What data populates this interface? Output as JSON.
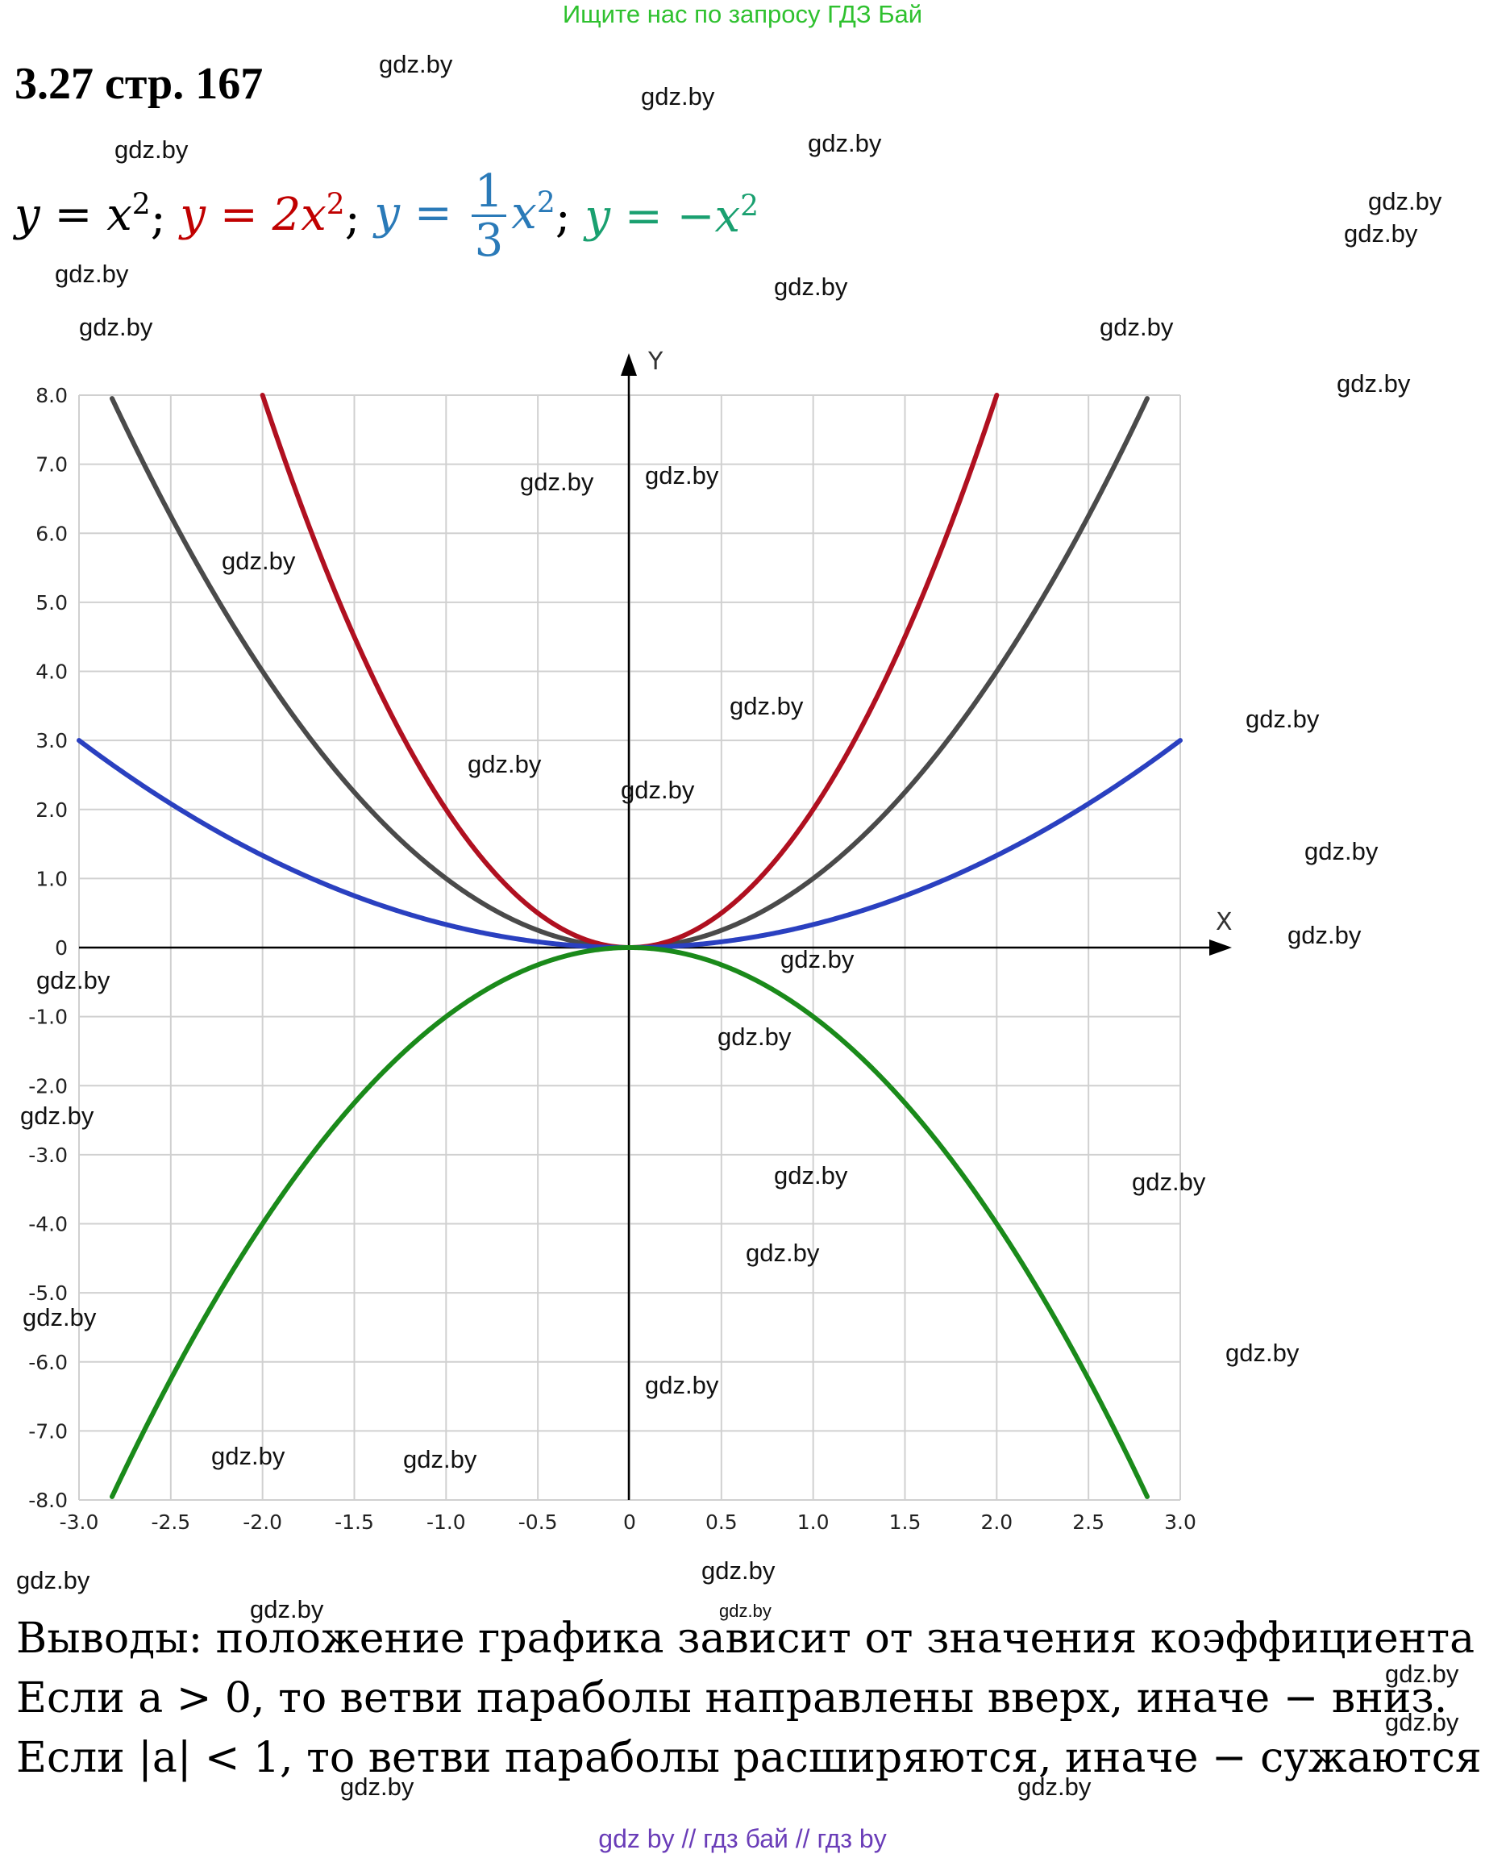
{
  "banner": "Ищите нас по запросу ГДЗ Бай",
  "title": "3.27 стр. 167",
  "formula": {
    "f1": {
      "lhs": "y",
      "eq": "=",
      "rhs": "x",
      "exp": "2",
      "sep": ";"
    },
    "f2": {
      "lhs": "y",
      "eq": "=",
      "coef": "2",
      "rhs": "x",
      "exp": "2",
      "sep": ";"
    },
    "f3": {
      "lhs": "y",
      "eq": "=",
      "num": "1",
      "den": "3",
      "rhs": "x",
      "exp": "2",
      "sep": ";"
    },
    "f4": {
      "lhs": "y",
      "eq": "=",
      "coef": "−",
      "rhs": "x",
      "exp": "2"
    }
  },
  "colors": {
    "x2": "#4a4a4a",
    "two_x2": "#b01020",
    "third_x2": "#2a40c0",
    "neg_x2": "#1a8a1a",
    "grid": "#d0d0d0",
    "axis": "#000000"
  },
  "chart_data": {
    "type": "line",
    "x_axis_label": "X",
    "y_axis_label": "Y",
    "xlim": [
      -3.0,
      3.0
    ],
    "ylim": [
      -8.0,
      8.0
    ],
    "grid": true,
    "x_ticks": [
      "-3.0",
      "-2.5",
      "-2.0",
      "-1.5",
      "-1.0",
      "-0.5",
      "0",
      "0.5",
      "1.0",
      "1.5",
      "2.0",
      "2.5",
      "3.0"
    ],
    "y_ticks": [
      "8.0",
      "7.0",
      "6.0",
      "5.0",
      "4.0",
      "3.0",
      "2.0",
      "1.0",
      "0",
      "-1.0",
      "-2.0",
      "-3.0",
      "-4.0",
      "-5.0",
      "-6.0",
      "-7.0",
      "-8.0"
    ],
    "series": [
      {
        "name": "y = x²",
        "coefficient": 1,
        "color_key": "x2"
      },
      {
        "name": "y = 2x²",
        "coefficient": 2,
        "color_key": "two_x2"
      },
      {
        "name": "y = (1/3)x²",
        "coefficient": 0.3333,
        "color_key": "third_x2"
      },
      {
        "name": "y = −x²",
        "coefficient": -1,
        "color_key": "neg_x2"
      }
    ]
  },
  "watermark": "gdz.by",
  "conclusions": {
    "line1": "Выводы: положение графика зависит от значения коэффициента a.",
    "line2": "Если a > 0, то ветви параболы направлены вверх, иначе − вниз.",
    "line3": "Если |a| < 1, то ветви параболы расширяются, иначе − сужаются."
  },
  "footer": "gdz by  //  гдз бай  //  гдз by"
}
